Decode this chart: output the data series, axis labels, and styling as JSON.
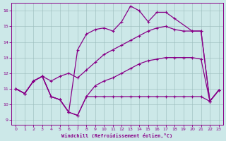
{
  "xlabel": "Windchill (Refroidissement éolien,°C)",
  "bg_color": "#cce8e8",
  "line_color": "#880088",
  "xlim": [
    -0.5,
    23.5
  ],
  "ylim": [
    8.7,
    16.5
  ],
  "xticks": [
    0,
    1,
    2,
    3,
    4,
    5,
    6,
    7,
    8,
    9,
    10,
    11,
    12,
    13,
    14,
    15,
    16,
    17,
    18,
    19,
    20,
    21,
    22,
    23
  ],
  "yticks": [
    9,
    10,
    11,
    12,
    13,
    14,
    15,
    16
  ],
  "line1_x": [
    0,
    1,
    2,
    3,
    4,
    5,
    6,
    7,
    8,
    9,
    10,
    11,
    12,
    13,
    14,
    15,
    16,
    17,
    18,
    19,
    20,
    21,
    22,
    23
  ],
  "line1_y": [
    11.0,
    10.7,
    11.5,
    11.8,
    10.5,
    10.3,
    9.5,
    9.3,
    10.5,
    10.5,
    10.5,
    10.5,
    10.5,
    10.5,
    10.5,
    10.5,
    10.5,
    10.5,
    10.5,
    10.5,
    10.5,
    10.5,
    10.2,
    10.9
  ],
  "line2_x": [
    0,
    1,
    2,
    3,
    4,
    5,
    6,
    7,
    8,
    9,
    10,
    11,
    12,
    13,
    14,
    15,
    16,
    17,
    18,
    19,
    20,
    21,
    22,
    23
  ],
  "line2_y": [
    11.0,
    10.7,
    11.5,
    11.8,
    10.5,
    10.3,
    9.5,
    9.3,
    10.5,
    11.2,
    11.5,
    11.7,
    12.0,
    12.3,
    12.6,
    12.8,
    12.9,
    13.0,
    13.0,
    13.0,
    13.0,
    12.9,
    10.2,
    10.9
  ],
  "line3_x": [
    0,
    1,
    2,
    3,
    4,
    5,
    6,
    7,
    8,
    9,
    10,
    11,
    12,
    13,
    14,
    15,
    16,
    17,
    18,
    20,
    21,
    22,
    23
  ],
  "line3_y": [
    11.0,
    10.7,
    11.5,
    11.8,
    10.5,
    10.3,
    9.5,
    13.5,
    14.5,
    14.8,
    14.9,
    14.7,
    15.3,
    16.3,
    16.0,
    15.3,
    15.9,
    15.9,
    15.5,
    14.7,
    14.7,
    10.2,
    10.9
  ],
  "line4_x": [
    0,
    1,
    2,
    3,
    4,
    5,
    6,
    7,
    8,
    9,
    10,
    11,
    12,
    13,
    14,
    15,
    16,
    17,
    18,
    19,
    20,
    21,
    22,
    23
  ],
  "line4_y": [
    11.0,
    10.7,
    11.5,
    11.8,
    11.5,
    11.8,
    12.0,
    11.7,
    12.2,
    12.7,
    13.2,
    13.5,
    13.8,
    14.1,
    14.4,
    14.7,
    14.9,
    15.0,
    14.8,
    14.7,
    14.7,
    14.7,
    10.2,
    10.9
  ]
}
